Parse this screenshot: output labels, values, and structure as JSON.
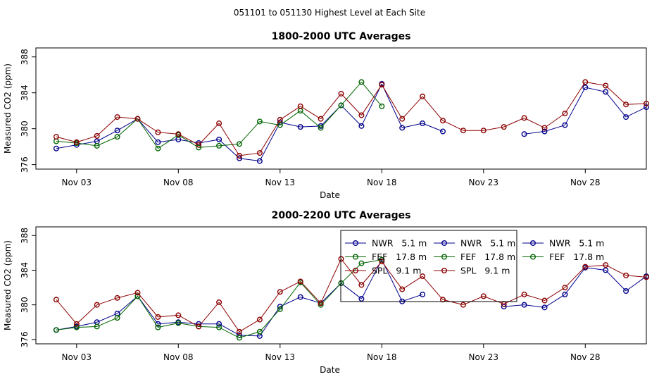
{
  "figure_title": "051101  to  051130 Highest Level at Each Site",
  "colors": {
    "NWR": "#00008b",
    "FEF": "#006400",
    "SPL": "#8b0000"
  },
  "chart_data": [
    {
      "type": "line",
      "title": "1800-2000 UTC Averages",
      "xlabel": "Date",
      "ylabel": "Measured CO2 (ppm)",
      "xlim": [
        1,
        31
      ],
      "ylim": [
        375.5,
        389
      ],
      "yticks": [
        376,
        380,
        384,
        388
      ],
      "xticks": [
        {
          "x": 3,
          "label": "Nov 03"
        },
        {
          "x": 8,
          "label": "Nov 08"
        },
        {
          "x": 13,
          "label": "Nov 13"
        },
        {
          "x": 18,
          "label": "Nov 18"
        },
        {
          "x": 23,
          "label": "Nov 23"
        },
        {
          "x": 28,
          "label": "Nov 28"
        }
      ],
      "legend": null,
      "series": [
        {
          "name": "NWR",
          "color": "#00008b",
          "x": [
            2,
            3,
            4,
            5,
            6,
            7,
            8,
            9,
            10,
            11,
            12,
            13,
            14,
            15,
            16,
            17,
            18,
            19,
            20,
            21,
            25,
            26,
            27,
            28,
            29,
            30,
            31
          ],
          "y": [
            377.8,
            378.2,
            378.6,
            379.8,
            381.1,
            378.5,
            378.8,
            378.4,
            378.8,
            376.7,
            376.4,
            380.7,
            380.2,
            380.3,
            382.6,
            380.3,
            385.0,
            380.1,
            380.6,
            379.7,
            379.4,
            379.7,
            380.4,
            384.6,
            384.1,
            381.3,
            382.4
          ]
        },
        {
          "name": "FEF",
          "color": "#006400",
          "x": [
            2,
            3,
            4,
            5,
            6,
            7,
            8,
            9,
            10,
            11,
            12,
            13,
            14,
            15,
            16,
            17,
            18
          ],
          "y": [
            378.6,
            378.4,
            378.1,
            379.1,
            381.1,
            377.8,
            379.3,
            377.9,
            378.1,
            378.3,
            380.8,
            380.4,
            382.0,
            380.1,
            382.6,
            385.2,
            382.5
          ]
        },
        {
          "name": "SPL",
          "color": "#8b0000",
          "x": [
            2,
            3,
            4,
            5,
            6,
            7,
            8,
            9,
            10,
            11,
            12,
            13,
            14,
            15,
            16,
            17,
            18,
            19,
            20,
            21,
            22,
            23,
            24,
            25,
            26,
            27,
            28,
            29,
            30,
            31
          ],
          "y": [
            379.1,
            378.5,
            379.2,
            381.3,
            381.1,
            379.6,
            379.4,
            378.2,
            380.6,
            377.0,
            377.3,
            381.0,
            382.5,
            381.1,
            383.9,
            381.5,
            384.9,
            381.1,
            383.6,
            380.9,
            379.8,
            379.8,
            380.2,
            381.2,
            380.1,
            381.7,
            385.2,
            384.8,
            382.7,
            382.8
          ]
        }
      ]
    },
    {
      "type": "line",
      "title": "2000-2200 UTC Averages",
      "xlabel": "Date",
      "ylabel": "Measured CO2 (ppm)",
      "xlim": [
        1,
        31
      ],
      "ylim": [
        375.5,
        389
      ],
      "yticks": [
        376,
        380,
        384,
        388
      ],
      "xticks": [
        {
          "x": 3,
          "label": "Nov 03"
        },
        {
          "x": 8,
          "label": "Nov 08"
        },
        {
          "x": 13,
          "label": "Nov 13"
        },
        {
          "x": 18,
          "label": "Nov 18"
        },
        {
          "x": 23,
          "label": "Nov 23"
        },
        {
          "x": 28,
          "label": "Nov 28"
        }
      ],
      "legend": {
        "placement": "top-center",
        "entries": [
          {
            "label": "NWR   5.1 m",
            "color": "#00008b"
          },
          {
            "label": "FEF   17.8 m",
            "color": "#006400"
          },
          {
            "label": "SPL   9.1 m",
            "color": "#8b0000"
          },
          {
            "label": "NWR   5.1 m",
            "color": "#00008b"
          },
          {
            "label": "FEF   17.8 m",
            "color": "#006400"
          },
          {
            "label": "SPL   9.1 m",
            "color": "#8b0000"
          },
          {
            "label": "NWR   5.1 m",
            "color": "#00008b"
          },
          {
            "label": "FEF   17.8 m",
            "color": "#006400"
          }
        ]
      },
      "series": [
        {
          "name": "NWR",
          "color": "#00008b",
          "x": [
            2,
            3,
            4,
            5,
            6,
            7,
            8,
            9,
            10,
            11,
            12,
            13,
            14,
            15,
            16,
            17,
            18,
            19,
            20,
            24,
            25,
            26,
            27,
            28,
            29,
            30,
            31
          ],
          "y": [
            377.1,
            377.5,
            378.0,
            379.0,
            381.0,
            377.8,
            378.0,
            377.8,
            377.8,
            376.5,
            376.4,
            379.8,
            380.9,
            380.2,
            382.5,
            380.7,
            385.2,
            380.4,
            381.2,
            379.8,
            380.0,
            379.7,
            381.2,
            384.3,
            384.0,
            381.6,
            383.3
          ]
        },
        {
          "name": "FEF",
          "color": "#006400",
          "x": [
            2,
            3,
            4,
            5,
            6,
            7,
            8,
            9,
            10,
            11,
            12,
            13,
            14,
            15,
            16,
            17,
            18
          ],
          "y": [
            377.1,
            377.4,
            377.5,
            378.5,
            381.0,
            377.4,
            377.9,
            377.5,
            377.4,
            376.2,
            376.9,
            379.5,
            382.6,
            380.0,
            382.5,
            384.8,
            385.2
          ]
        },
        {
          "name": "SPL",
          "color": "#8b0000",
          "x": [
            2,
            3,
            4,
            5,
            6,
            7,
            8,
            9,
            10,
            11,
            12,
            13,
            14,
            15,
            16,
            17,
            18,
            19,
            20,
            21,
            22,
            23,
            24,
            25,
            26,
            27,
            28,
            29,
            30,
            31
          ],
          "y": [
            380.6,
            377.8,
            380.0,
            380.8,
            381.4,
            378.6,
            378.8,
            377.5,
            380.3,
            376.9,
            378.3,
            381.5,
            382.7,
            380.2,
            385.3,
            382.3,
            385.0,
            381.8,
            383.3,
            380.6,
            380.0,
            381.0,
            380.1,
            381.2,
            380.5,
            382.0,
            384.4,
            384.6,
            383.4,
            383.2
          ]
        }
      ]
    }
  ]
}
